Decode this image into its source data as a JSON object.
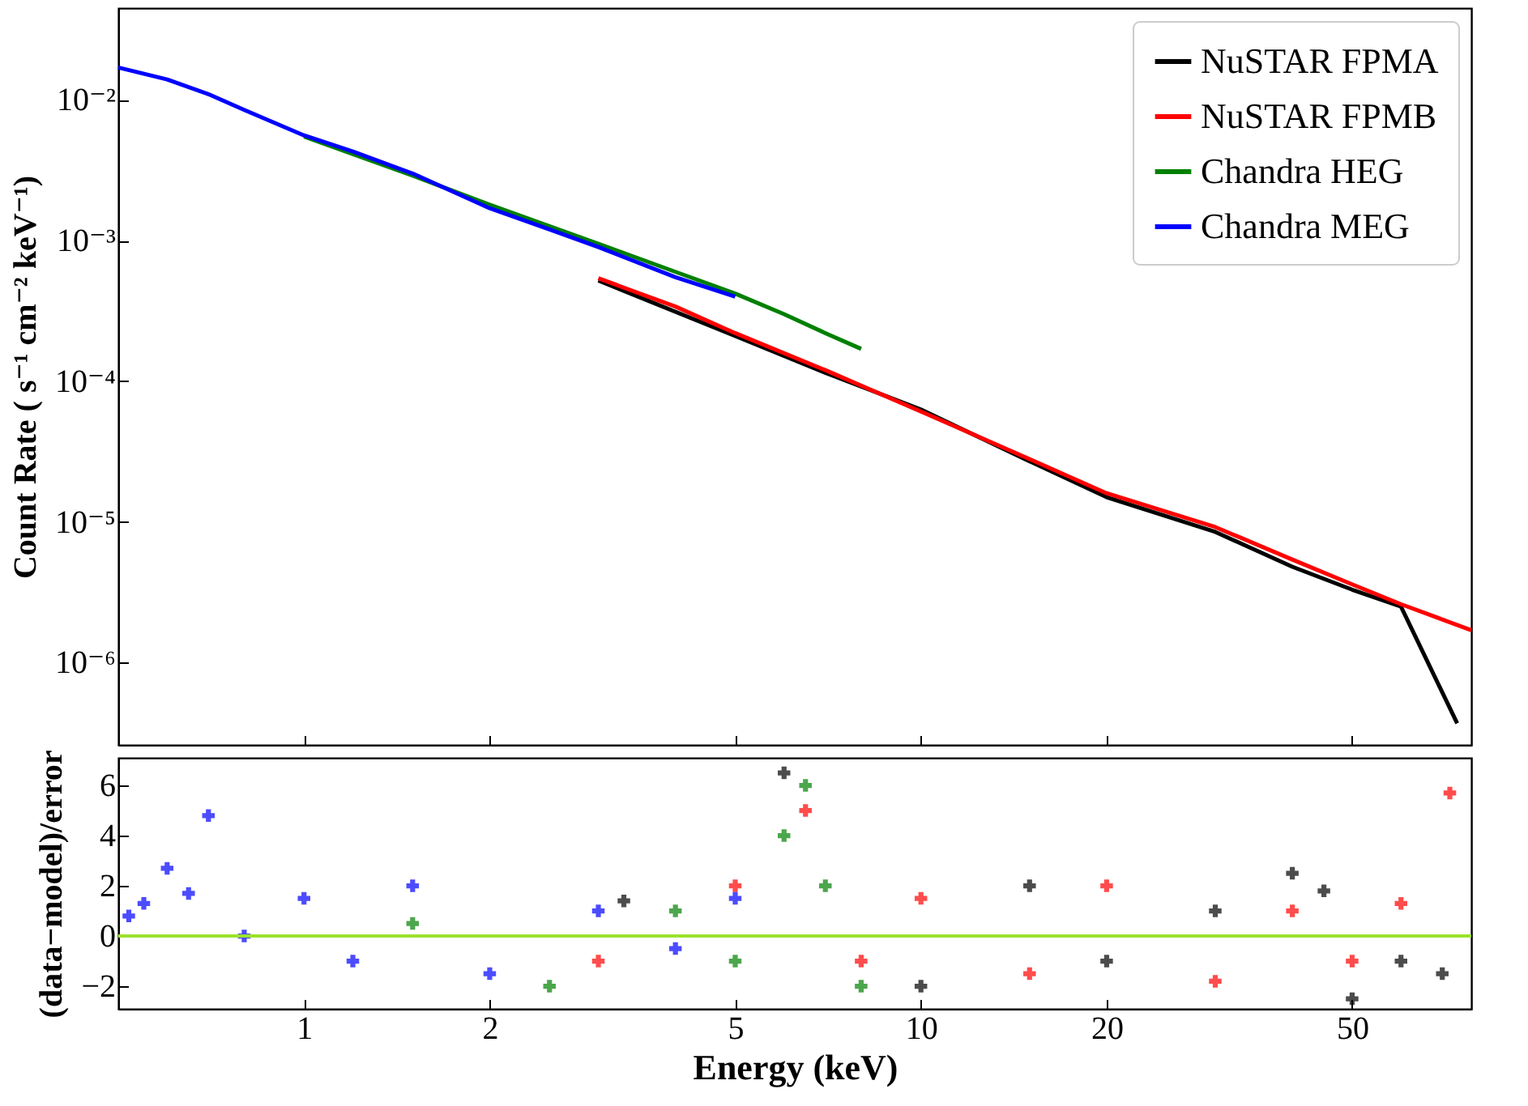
{
  "chart_data": [
    {
      "type": "line",
      "ylabel": "Count Rate ( s⁻¹ cm⁻² keV⁻¹)",
      "log": "xy",
      "grid": false,
      "legend": "top right",
      "marker": "none",
      "line_style": "solid",
      "tick_labels": "y",
      "xlim": [
        0.5,
        78
      ],
      "xticks": [
        1,
        2,
        5,
        10,
        20,
        50
      ],
      "ylim": [
        2.6e-07,
        0.045
      ],
      "yticks": [
        {
          "value": 0.01,
          "label": "10⁻²"
        },
        {
          "value": 0.001,
          "label": "10⁻³"
        },
        {
          "value": 0.0001,
          "label": "10⁻⁴"
        },
        {
          "value": 1e-05,
          "label": "10⁻⁵"
        },
        {
          "value": 1e-06,
          "label": "10⁻⁶"
        }
      ],
      "series": [
        {
          "name": "NuSTAR FPMA",
          "color": "#000000",
          "x": [
            3,
            5,
            7,
            10,
            15,
            20,
            30,
            40,
            50,
            60,
            74
          ],
          "values": [
            0.00052,
            0.00021,
            0.000115,
            6.3e-05,
            2.7e-05,
            1.5e-05,
            8.5e-06,
            4.8e-06,
            3.3e-06,
            2.5e-06,
            3.7e-07
          ]
        },
        {
          "name": "NuSTAR FPMB",
          "color": "#ff0000",
          "x": [
            3,
            4,
            5,
            7,
            10,
            15,
            20,
            30,
            40,
            50,
            60,
            78
          ],
          "values": [
            0.00054,
            0.00034,
            0.00022,
            0.00012,
            6.1e-05,
            2.8e-05,
            1.6e-05,
            9.2e-06,
            5.4e-06,
            3.6e-06,
            2.6e-06,
            1.7e-06
          ]
        },
        {
          "name": "Chandra HEG",
          "color": "#008000",
          "x": [
            1,
            1.5,
            2,
            3,
            4,
            5,
            6,
            7,
            8
          ],
          "values": [
            0.0055,
            0.0029,
            0.0018,
            0.00095,
            0.0006,
            0.00042,
            0.0003,
            0.00022,
            0.00017
          ]
        },
        {
          "name": "Chandra MEG",
          "color": "#0000ff",
          "x": [
            0.5,
            0.6,
            0.7,
            0.8,
            1,
            1.2,
            1.5,
            2,
            2.5,
            3,
            4,
            5
          ],
          "values": [
            0.017,
            0.014,
            0.011,
            0.0085,
            0.0056,
            0.0043,
            0.003,
            0.0017,
            0.0012,
            0.0009,
            0.00055,
            0.0004
          ]
        }
      ]
    },
    {
      "type": "scatter",
      "xlabel": "Energy (keV)",
      "ylabel": "(data−model)/error",
      "log": "x",
      "grid": false,
      "marker": "cross",
      "xlim": [
        0.5,
        78
      ],
      "xticks": [
        1,
        2,
        5,
        10,
        20,
        50
      ],
      "ylim": [
        -2.9,
        7.1
      ],
      "yticks": [
        {
          "value": -2,
          "label": "−2"
        },
        0,
        2,
        4,
        6
      ],
      "ref_lines": [
        {
          "axis": "y",
          "value": 0,
          "color": "#9be22d"
        }
      ],
      "series": [
        {
          "color": "#000000",
          "x": [
            3.3,
            6,
            10,
            15,
            20,
            30,
            40,
            45,
            50,
            60,
            70
          ],
          "values": [
            1.4,
            6.5,
            -2,
            2,
            -1,
            1,
            2.5,
            1.8,
            -2.5,
            -1,
            -1.5
          ]
        },
        {
          "color": "#ff0000",
          "x": [
            3,
            5,
            6.5,
            8,
            10,
            15,
            20,
            30,
            40,
            50,
            60,
            72
          ],
          "values": [
            -1,
            2,
            5,
            -1,
            1.5,
            -1.5,
            2,
            -1.8,
            1,
            -1,
            1.3,
            5.7
          ]
        },
        {
          "color": "#008000",
          "x": [
            1.5,
            2.5,
            4,
            5,
            6,
            6.5,
            7,
            8
          ],
          "values": [
            0.5,
            -2,
            1,
            -1,
            4,
            6,
            2,
            -2
          ]
        },
        {
          "color": "#0000ff",
          "x": [
            0.52,
            0.55,
            0.6,
            0.65,
            0.7,
            0.8,
            1,
            1.2,
            1.5,
            2,
            3,
            4,
            5
          ],
          "values": [
            0.8,
            1.3,
            2.7,
            1.7,
            4.8,
            0,
            1.5,
            -1,
            2,
            -1.5,
            1,
            -0.5,
            1.5
          ]
        }
      ]
    }
  ]
}
